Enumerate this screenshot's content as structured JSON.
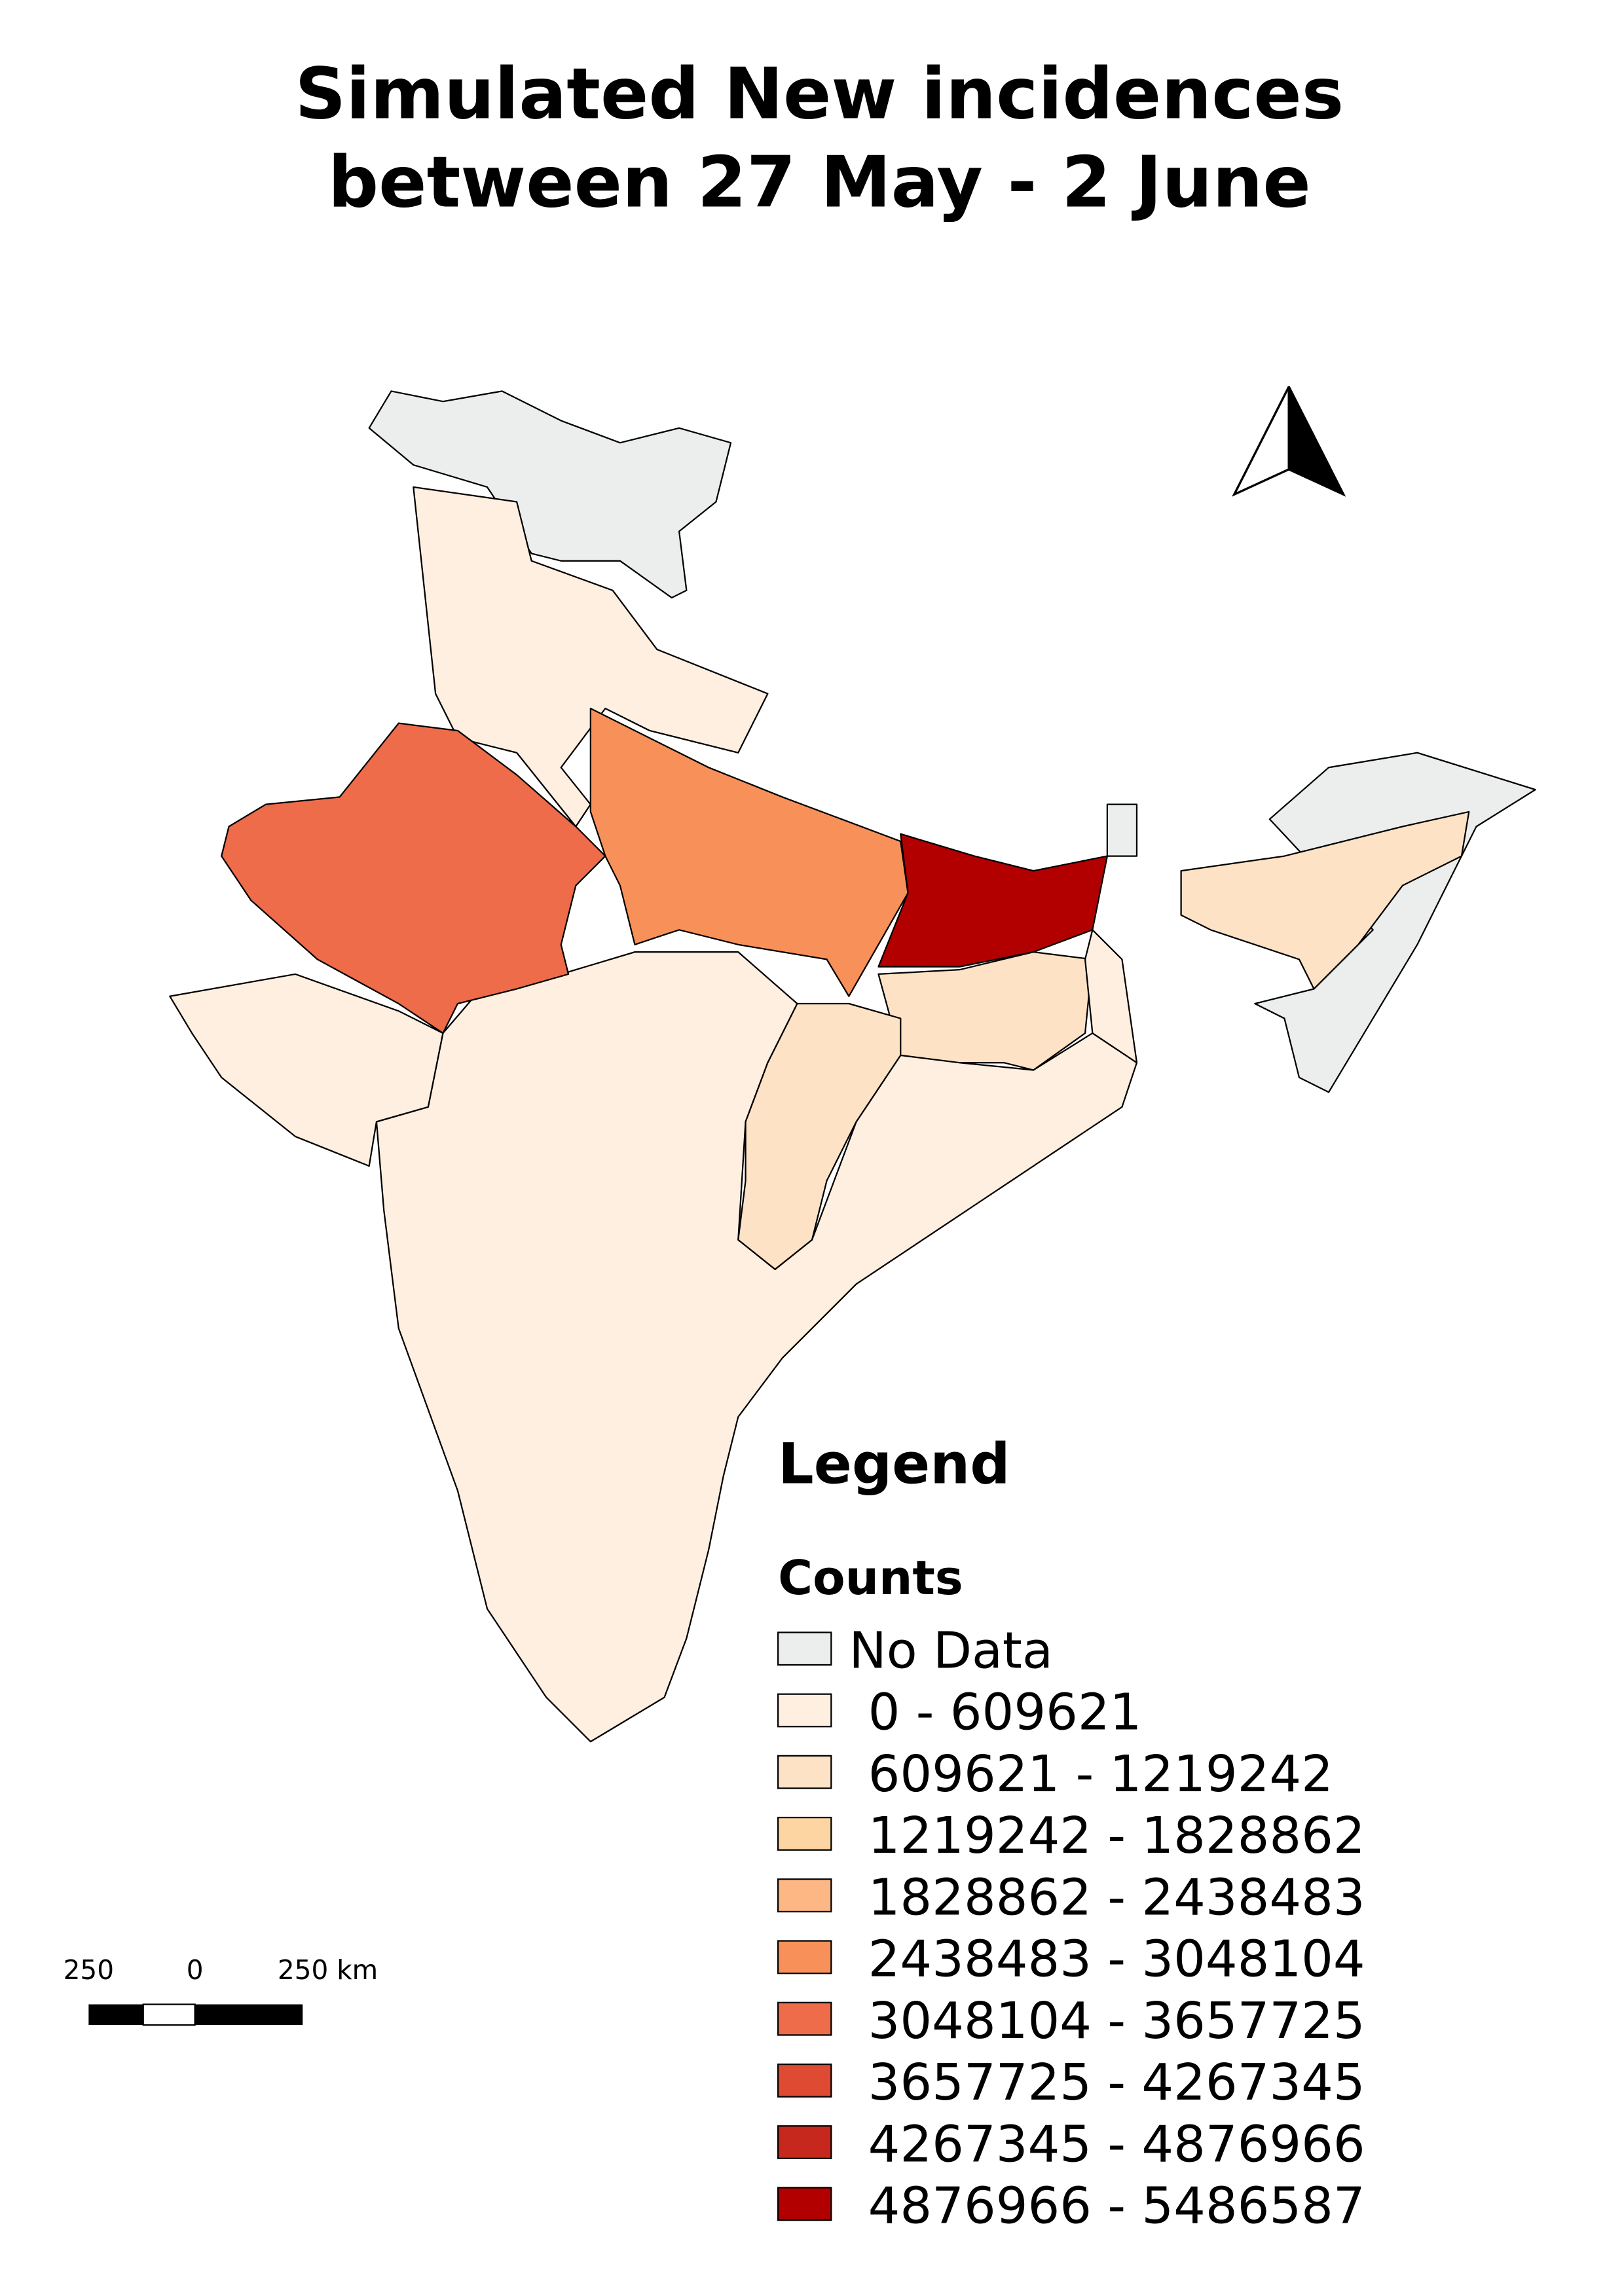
{
  "title": [
    "Simulated New incidences",
    "between 27 May - 2 June"
  ],
  "legend": {
    "title": "Legend",
    "subtitle": "Counts",
    "items": [
      {
        "label": "No Data",
        "color": "#eceeee"
      },
      {
        "label": "0 - 609621",
        "color": "#feefe0"
      },
      {
        "label": "609621 - 1219242",
        "color": "#fde2c6"
      },
      {
        "label": "1219242 - 1828862",
        "color": "#fdd5a2"
      },
      {
        "label": "1828862 - 2438483",
        "color": "#fdb785"
      },
      {
        "label": "2438483 - 3048104",
        "color": "#f89159"
      },
      {
        "label": "3048104 - 3657725",
        "color": "#ee6c4a"
      },
      {
        "label": "3657725 - 4267345",
        "color": "#df4a33"
      },
      {
        "label": "4267345 - 4876966",
        "color": "#c7281d"
      },
      {
        "label": "4876966 - 5486587",
        "color": "#b20000"
      }
    ]
  },
  "scale_bar": {
    "labels": [
      "250",
      "0",
      "250 km"
    ]
  }
}
